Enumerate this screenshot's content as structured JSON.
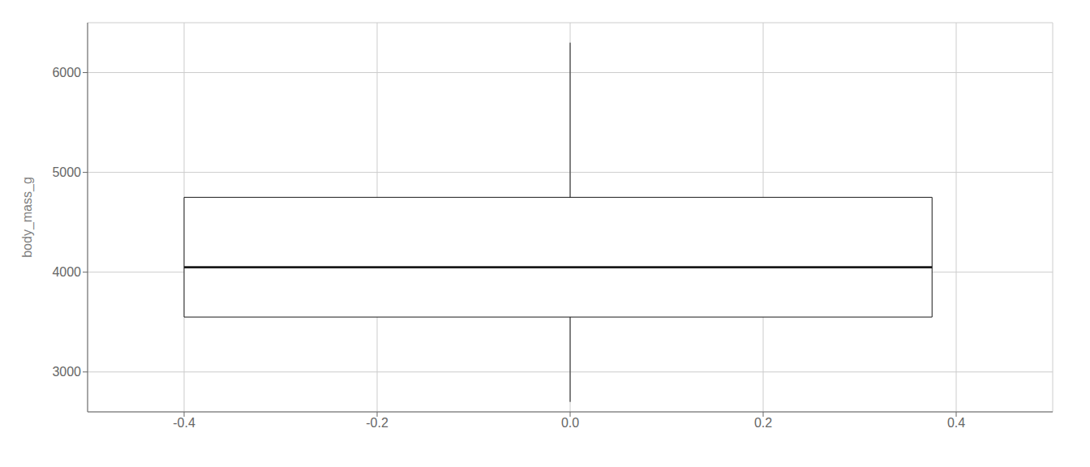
{
  "chart_data": {
    "type": "box",
    "title": "",
    "ylabel": "body_mass_g",
    "xlim": [
      -0.5,
      0.5
    ],
    "ylim": [
      2600,
      6500
    ],
    "xticks": [
      -0.4,
      -0.2,
      {
        "value": 0.0,
        "label": "0.0"
      },
      0.2,
      0.4
    ],
    "yticks": [
      3000,
      4000,
      5000,
      6000
    ],
    "grid": true,
    "color": "#1a1a1a",
    "box_x": [
      -0.4,
      0.375
    ],
    "whisker_x": 0.0,
    "q1": 3550,
    "median": 4050,
    "q3": 4750,
    "whisker_low": 2700,
    "whisker_high": 6300
  }
}
